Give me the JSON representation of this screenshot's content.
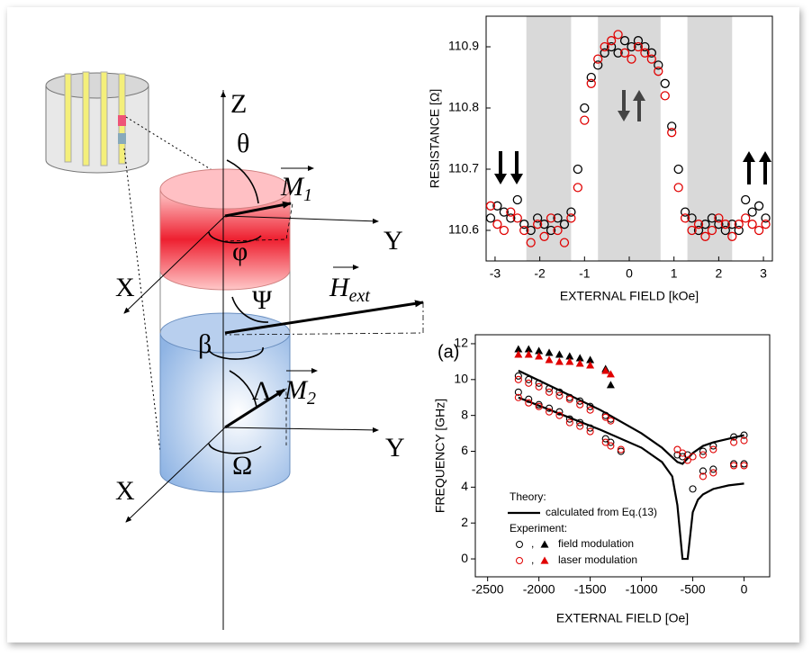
{
  "diagram": {
    "labels": {
      "z": "Z",
      "theta": "θ",
      "m1": {
        "symbol": "M",
        "subscript": "1"
      },
      "phi": "φ",
      "y1": "Y",
      "x1": "X",
      "psi": "Ψ",
      "h": {
        "symbol": "H",
        "subscript": "ext"
      },
      "beta": "β",
      "lambda": "Λ",
      "m2": {
        "symbol": "M",
        "subscript": "2"
      },
      "omega": "Ω",
      "y2": "Y",
      "x2": "X"
    }
  },
  "chart_data": [
    {
      "type": "scatter",
      "ylabel": "RESISTANCE [Ω]",
      "xlabel": "EXTERNAL FIELD [kOe]",
      "xlim": [
        -3.2,
        3.2
      ],
      "xticks": [
        -3,
        -2,
        -1,
        0,
        1,
        2,
        3
      ],
      "ylim": [
        110.55,
        110.95
      ],
      "yticks": [
        110.6,
        110.7,
        110.8,
        110.9
      ],
      "shaded_regions": [
        [
          -2.3,
          -1.3
        ],
        [
          -0.7,
          0.7
        ],
        [
          1.3,
          2.3
        ]
      ],
      "shade_color": "#d9d9d9",
      "x": [
        -3.1,
        -2.95,
        -2.8,
        -2.65,
        -2.5,
        -2.35,
        -2.2,
        -2.05,
        -1.9,
        -1.75,
        -1.6,
        -1.45,
        -1.3,
        -1.15,
        -1,
        -0.85,
        -0.7,
        -0.55,
        -0.4,
        -0.25,
        -0.1,
        0.05,
        0.2,
        0.35,
        0.5,
        0.65,
        0.8,
        0.95,
        1.1,
        1.25,
        1.4,
        1.55,
        1.7,
        1.85,
        2,
        2.15,
        2.3,
        2.45,
        2.6,
        2.75,
        2.9,
        3.05
      ],
      "series": [
        {
          "color": "#000000",
          "values": [
            110.62,
            110.64,
            110.63,
            110.62,
            110.65,
            110.61,
            110.6,
            110.62,
            110.61,
            110.6,
            110.62,
            110.61,
            110.63,
            110.7,
            110.8,
            110.85,
            110.87,
            110.89,
            110.9,
            110.89,
            110.91,
            110.9,
            110.91,
            110.9,
            110.89,
            110.87,
            110.84,
            110.77,
            110.7,
            110.63,
            110.62,
            110.6,
            110.61,
            110.62,
            110.61,
            110.6,
            110.61,
            110.6,
            110.65,
            110.63,
            110.64,
            110.62
          ]
        },
        {
          "color": "#e00000",
          "values": [
            110.64,
            110.61,
            110.6,
            110.63,
            110.62,
            110.6,
            110.58,
            110.61,
            110.59,
            110.62,
            110.6,
            110.58,
            110.62,
            110.67,
            110.78,
            110.84,
            110.88,
            110.9,
            110.91,
            110.92,
            110.89,
            110.88,
            110.9,
            110.89,
            110.88,
            110.86,
            110.82,
            110.76,
            110.67,
            110.62,
            110.6,
            110.61,
            110.59,
            110.6,
            110.62,
            110.61,
            110.59,
            110.61,
            110.62,
            110.61,
            110.6,
            110.61
          ]
        }
      ]
    },
    {
      "type": "scatter",
      "panel_label": "(a)",
      "ylabel": "FREQUENCY [GHz]",
      "xlabel": "EXTERNAL FIELD [Oe]",
      "xlim": [
        -2620,
        250
      ],
      "xticks": [
        -2500,
        -2000,
        -1500,
        -1000,
        -500,
        0
      ],
      "ylim": [
        -1,
        12.5
      ],
      "yticks": [
        0,
        2,
        4,
        6,
        8,
        10,
        12
      ],
      "legend": {
        "theory": "Theory:",
        "experiment": "Experiment:",
        "separator": ","
      },
      "series": [
        {
          "name": "calculated from Eq.(13)",
          "color": "#000000",
          "branches": [
            {
              "x": [
                -2200,
                -1800,
                -1400,
                -1000,
                -800,
                -650,
                -600,
                -500,
                -400,
                -300,
                -150,
                0
              ],
              "values": [
                10.5,
                9.4,
                8.3,
                7,
                6.2,
                5.4,
                5.3,
                5.9,
                6.3,
                6.5,
                6.7,
                6.9
              ]
            },
            {
              "x": [
                -2200,
                -1800,
                -1400,
                -1000,
                -800,
                -700,
                -650,
                -600,
                -550,
                -500,
                -450,
                -400,
                -300,
                -150,
                0
              ],
              "values": [
                9,
                8.1,
                7.2,
                6.2,
                5.4,
                4.6,
                3,
                0,
                0,
                2.6,
                3.3,
                3.6,
                3.9,
                4.1,
                4.2
              ]
            }
          ]
        },
        {
          "name": "field modulation",
          "color": "#000000",
          "circles": {
            "x": [
              -2200,
              -2100,
              -2000,
              -1900,
              -1800,
              -1700,
              -1600,
              -1500,
              -1350,
              -1300,
              -2200,
              -2100,
              -2000,
              -1900,
              -1800,
              -1700,
              -1600,
              -1500,
              -1350,
              -1300,
              -1200,
              -650,
              -600,
              -550,
              -500,
              -400,
              -300,
              -100,
              0,
              -400,
              -300,
              -100,
              0
            ],
            "values": [
              10.2,
              10,
              9.8,
              9.5,
              9.3,
              9,
              8.8,
              8.5,
              8,
              7.8,
              9.3,
              8.9,
              8.6,
              8.4,
              8.2,
              7.8,
              7.6,
              7.3,
              6.7,
              6.5,
              6,
              5.8,
              5.7,
              5.8,
              3.9,
              6,
              6.3,
              6.8,
              6.9,
              4.9,
              5,
              5.3,
              5.3
            ]
          },
          "triangles": {
            "x": [
              -2200,
              -2100,
              -2000,
              -1900,
              -1800,
              -1700,
              -1600,
              -1500,
              -1350,
              -1300
            ],
            "values": [
              11.7,
              11.7,
              11.6,
              11.5,
              11.4,
              11.3,
              11.2,
              11.1,
              10.6,
              9.7
            ]
          }
        },
        {
          "name": "laser modulation",
          "color": "#e00000",
          "circles": {
            "x": [
              -2200,
              -2100,
              -2000,
              -1900,
              -1800,
              -1700,
              -1600,
              -1500,
              -1350,
              -1300,
              -2200,
              -2100,
              -2000,
              -1900,
              -1800,
              -1700,
              -1600,
              -1500,
              -1350,
              -1300,
              -1200,
              -650,
              -600,
              -550,
              -500,
              -400,
              -300,
              -100,
              0,
              -400,
              -300,
              -100,
              0
            ],
            "values": [
              10,
              9.8,
              9.6,
              9.3,
              9.1,
              8.9,
              8.6,
              8.3,
              7.9,
              7.7,
              9,
              8.7,
              8.5,
              8.2,
              8,
              7.6,
              7.4,
              7.1,
              6.5,
              6.3,
              6.1,
              6.1,
              5.9,
              5.5,
              5.7,
              5.8,
              6.1,
              6.5,
              6.6,
              4.6,
              4.8,
              5.2,
              5.2
            ]
          },
          "triangles": {
            "x": [
              -2200,
              -2100,
              -2000,
              -1900,
              -1800,
              -1700,
              -1600,
              -1500,
              -1350,
              -1300
            ],
            "values": [
              11.4,
              11.4,
              11.3,
              11.1,
              11,
              11,
              10.9,
              10.8,
              10.5,
              10.3
            ]
          }
        }
      ]
    }
  ]
}
